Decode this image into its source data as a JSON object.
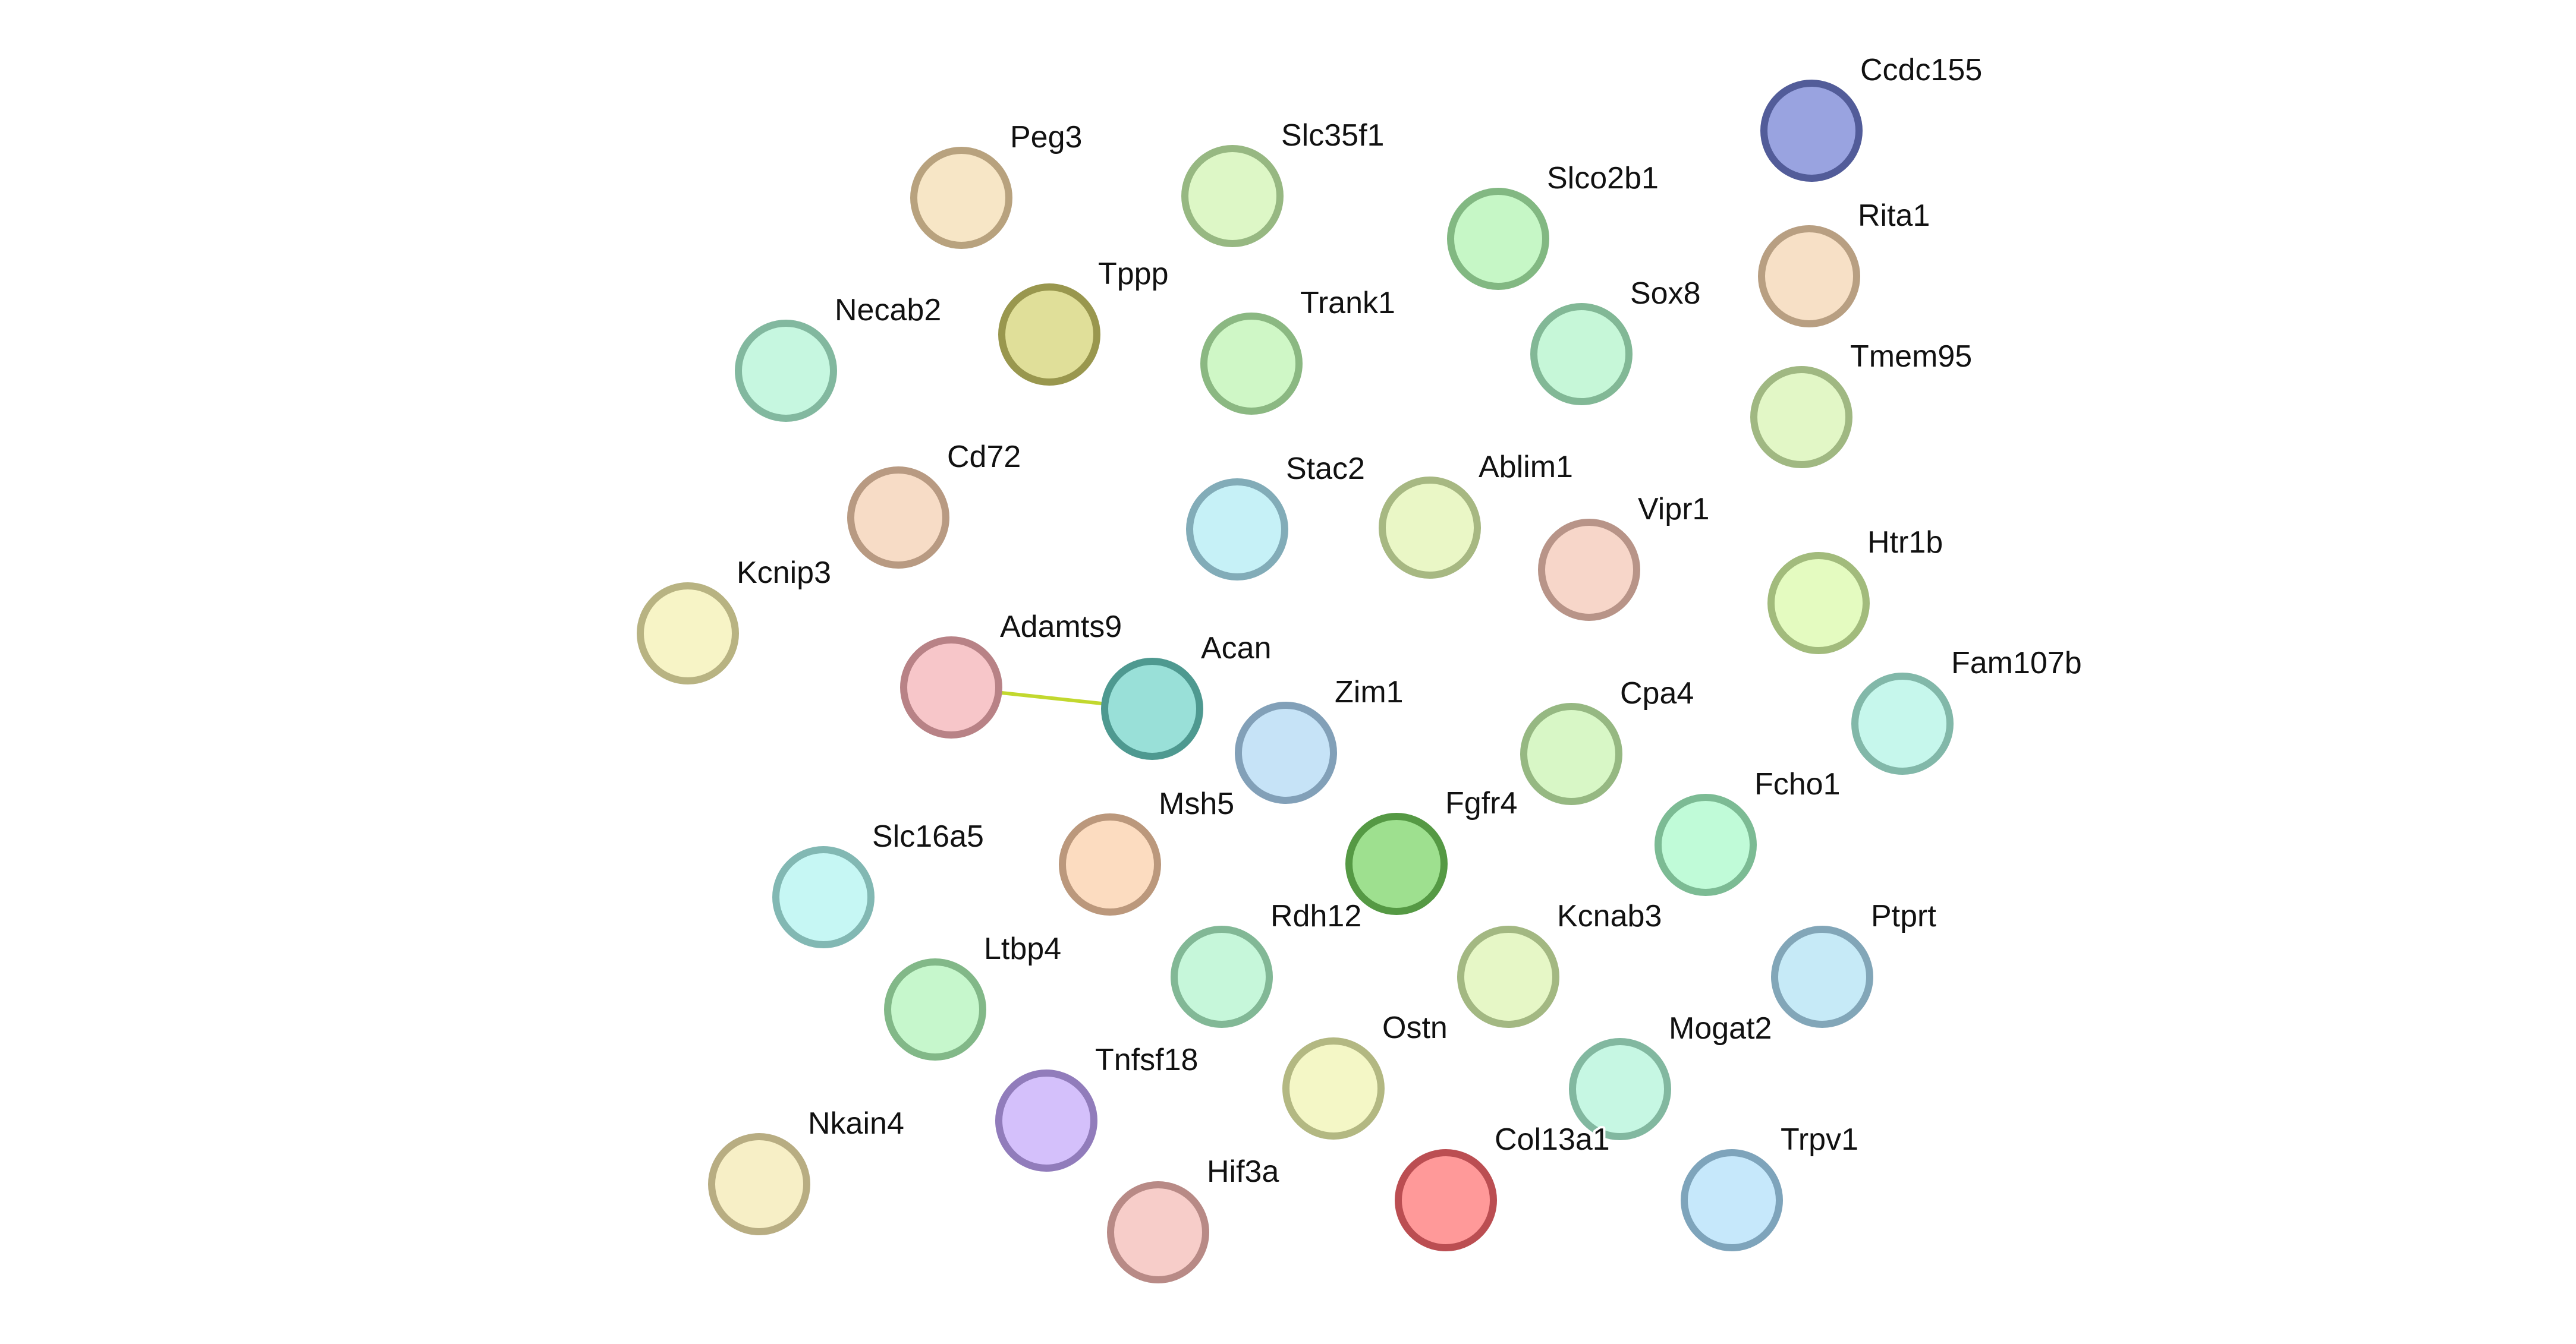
{
  "network": {
    "nodes": [
      {
        "id": "Peg3",
        "label": "Peg3",
        "fill": "#f7e6c6",
        "stroke": "#b8a27e"
      },
      {
        "id": "Slc35f1",
        "label": "Slc35f1",
        "fill": "#ddf7c6",
        "stroke": "#97b882"
      },
      {
        "id": "Slco2b1",
        "label": "Slco2b1",
        "fill": "#c6f7c6",
        "stroke": "#82b882"
      },
      {
        "id": "Ccdc155",
        "label": "Ccdc155",
        "fill": "#99a3e0",
        "stroke": "#525c99"
      },
      {
        "id": "Rita1",
        "label": "Rita1",
        "fill": "#f7e0c6",
        "stroke": "#b89f82"
      },
      {
        "id": "Necab2",
        "label": "Necab2",
        "fill": "#c6f7e0",
        "stroke": "#82b89f"
      },
      {
        "id": "Tppp",
        "label": "Tppp",
        "fill": "#e0df99",
        "stroke": "#99974e"
      },
      {
        "id": "Trank1",
        "label": "Trank1",
        "fill": "#cff7c6",
        "stroke": "#8bb882"
      },
      {
        "id": "Sox8",
        "label": "Sox8",
        "fill": "#c6f7d8",
        "stroke": "#82b896"
      },
      {
        "id": "Tmem95",
        "label": "Tmem95",
        "fill": "#e2f7c6",
        "stroke": "#a0b882"
      },
      {
        "id": "Cd72",
        "label": "Cd72",
        "fill": "#f7dcc6",
        "stroke": "#b89a82"
      },
      {
        "id": "Stac2",
        "label": "Stac2",
        "fill": "#c6f1f7",
        "stroke": "#82acb8"
      },
      {
        "id": "Ablim1",
        "label": "Ablim1",
        "fill": "#eaf7c6",
        "stroke": "#a7b882"
      },
      {
        "id": "Vipr1",
        "label": "Vipr1",
        "fill": "#f7d6c9",
        "stroke": "#b89488"
      },
      {
        "id": "Kcnip3",
        "label": "Kcnip3",
        "fill": "#f7f4c6",
        "stroke": "#b8b382"
      },
      {
        "id": "Htr1b",
        "label": "Htr1b",
        "fill": "#e4fbc0",
        "stroke": "#a2bb7c"
      },
      {
        "id": "Adamts9",
        "label": "Adamts9",
        "fill": "#f7c6c9",
        "stroke": "#b88286"
      },
      {
        "id": "Acan",
        "label": "Acan",
        "fill": "#99e0d8",
        "stroke": "#4e9990"
      },
      {
        "id": "Zim1",
        "label": "Zim1",
        "fill": "#c6e3f7",
        "stroke": "#82a0b8"
      },
      {
        "id": "Cpa4",
        "label": "Cpa4",
        "fill": "#d8f7c6",
        "stroke": "#96b882"
      },
      {
        "id": "Fam107b",
        "label": "Fam107b",
        "fill": "#c6f7ec",
        "stroke": "#82b8a9"
      },
      {
        "id": "Fgfr4",
        "label": "Fgfr4",
        "fill": "#9ee08f",
        "stroke": "#559944"
      },
      {
        "id": "Fcho1",
        "label": "Fcho1",
        "fill": "#c0fbd8",
        "stroke": "#7cbb94"
      },
      {
        "id": "Msh5",
        "label": "Msh5",
        "fill": "#fcdcc0",
        "stroke": "#bb987c"
      },
      {
        "id": "Slc16a5",
        "label": "Slc16a5",
        "fill": "#c6f7f4",
        "stroke": "#82b8b3"
      },
      {
        "id": "Rdh12",
        "label": "Rdh12",
        "fill": "#c6f7da",
        "stroke": "#82b896"
      },
      {
        "id": "Kcnab3",
        "label": "Kcnab3",
        "fill": "#e6f7c6",
        "stroke": "#a3b882"
      },
      {
        "id": "Ptprt",
        "label": "Ptprt",
        "fill": "#c6eaf7",
        "stroke": "#82a6b8"
      },
      {
        "id": "Ltbp4",
        "label": "Ltbp4",
        "fill": "#c6f7cc",
        "stroke": "#82b888"
      },
      {
        "id": "Ostn",
        "label": "Ostn",
        "fill": "#f4f7c6",
        "stroke": "#b3b882"
      },
      {
        "id": "Mogat2",
        "label": "Mogat2",
        "fill": "#c6f7e3",
        "stroke": "#82b8a0"
      },
      {
        "id": "Tnfsf18",
        "label": "Tnfsf18",
        "fill": "#d4c0fb",
        "stroke": "#917cbb"
      },
      {
        "id": "Nkain4",
        "label": "Nkain4",
        "fill": "#f7efc6",
        "stroke": "#b8ad82"
      },
      {
        "id": "Hif3a",
        "label": "Hif3a",
        "fill": "#f7cdc9",
        "stroke": "#b88a86"
      },
      {
        "id": "Col13a1",
        "label": "Col13a1",
        "fill": "#ff9999",
        "stroke": "#bb4e52"
      },
      {
        "id": "Trpv1",
        "label": "Trpv1",
        "fill": "#c6e8fb",
        "stroke": "#7ea4bb"
      }
    ],
    "edges": [
      {
        "source": "Adamts9",
        "target": "Acan",
        "color": "#c2d82e"
      }
    ]
  }
}
